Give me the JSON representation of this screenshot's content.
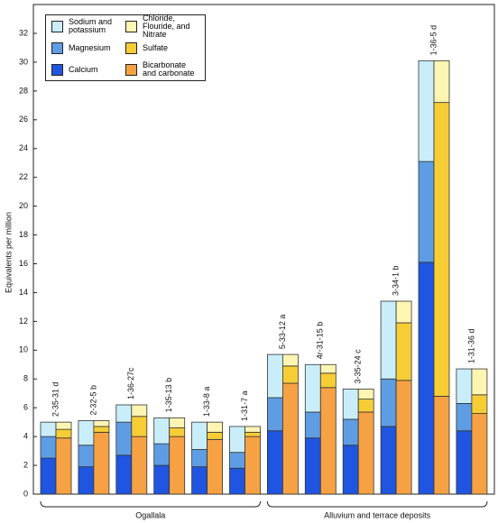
{
  "chart_data": {
    "type": "bar",
    "y_label": "Equivalents per million",
    "groups": [
      {
        "name": "Ogallala",
        "categories": [
          "2-35-31 d",
          "2-32-5 b",
          "1-36-27c",
          "1-35-13 b",
          "1-33-8 a",
          "1-31-7 a"
        ]
      },
      {
        "name": "Alluvium and terrace deposits",
        "categories": [
          "5-33-12 a",
          "4r-31-15 b",
          "3-35-24 c",
          "3-34-1 b",
          "1-36-5 d",
          "1-31-36 d"
        ]
      }
    ],
    "series": [
      {
        "name": "Calcium",
        "color": "#1f55e0",
        "stack": "left",
        "values": [
          2.5,
          1.9,
          2.7,
          2.0,
          1.9,
          1.8,
          4.4,
          3.9,
          3.4,
          4.7,
          16.1,
          4.4
        ]
      },
      {
        "name": "Magnesium",
        "color": "#5e9de3",
        "stack": "left",
        "values": [
          1.5,
          1.5,
          2.3,
          1.5,
          1.2,
          1.1,
          2.3,
          1.8,
          1.8,
          3.3,
          7.0,
          1.9
        ]
      },
      {
        "name": "Sodium and potassium",
        "color": "#c9eef9",
        "stack": "left",
        "values": [
          1.0,
          1.7,
          1.2,
          1.8,
          1.9,
          1.8,
          3.0,
          3.3,
          2.1,
          5.4,
          7.0,
          2.4
        ]
      },
      {
        "name": "Bicarbonate and carbonate",
        "color": "#f6a244",
        "stack": "right",
        "values": [
          3.9,
          4.3,
          4.0,
          4.0,
          3.8,
          4.0,
          7.7,
          7.4,
          5.7,
          7.9,
          6.8,
          5.6
        ]
      },
      {
        "name": "Sulfate",
        "color": "#f7cd36",
        "stack": "right",
        "values": [
          0.6,
          0.4,
          1.4,
          0.6,
          0.5,
          0.3,
          1.2,
          1.0,
          0.9,
          4.0,
          20.4,
          1.3
        ]
      },
      {
        "name": "Chloride, Flouride, and Nitrate",
        "color": "#fff5b3",
        "stack": "right",
        "values": [
          0.5,
          0.4,
          0.8,
          0.7,
          0.7,
          0.4,
          0.8,
          0.6,
          0.7,
          1.5,
          2.9,
          1.8
        ]
      }
    ],
    "ylim": [
      0,
      32
    ],
    "yticks": [
      0,
      2,
      4,
      6,
      8,
      10,
      12,
      14,
      16,
      18,
      20,
      22,
      24,
      26,
      28,
      30,
      32
    ]
  }
}
